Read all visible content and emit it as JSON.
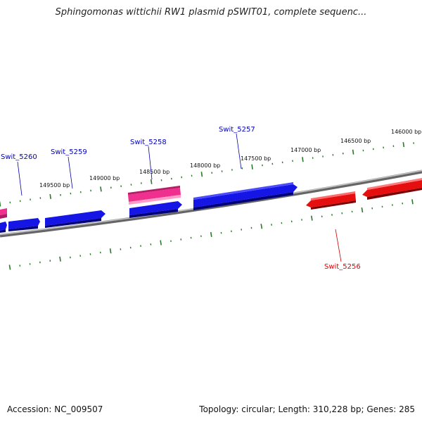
{
  "header": {
    "title": "Sphingomonas wittichii RW1 plasmid pSWIT01, complete sequenc..."
  },
  "footer": {
    "accession": "Accession: NC_009507",
    "summary": "Topology: circular; Length: 310,228 bp; Genes: 285"
  },
  "map": {
    "scale_labels": [
      "149500 bp",
      "149000 bp",
      "148500 bp",
      "148000 bp",
      "147500 bp",
      "147000 bp",
      "146500 bp",
      "146000 bp"
    ],
    "gene_labels": [
      {
        "name": "Swit_5260",
        "color": "#0000bb"
      },
      {
        "name": "Swit_5259",
        "color": "#0000bb"
      },
      {
        "name": "Swit_5258",
        "color": "#0000bb"
      },
      {
        "name": "Swit_5257",
        "color": "#0000bb"
      },
      {
        "name": "Swit_5256",
        "color": "#dd0000"
      }
    ],
    "colors": {
      "backbone": "#888888",
      "ticks": "#2a7a2a",
      "forward_gene": "#1515e6",
      "reverse_gene": "#e60f0f",
      "pink_gene": "#f0308f"
    }
  }
}
